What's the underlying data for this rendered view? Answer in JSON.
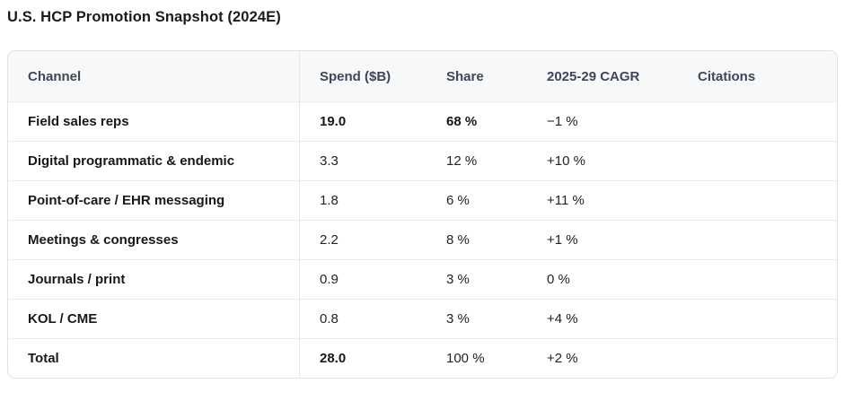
{
  "title": "U.S. HCP Promotion Snapshot (2024E)",
  "colors": {
    "header_background": "#f7f8fa",
    "header_text": "#3d4757",
    "body_text": "#202327",
    "emphasis_text": "#16181b",
    "outer_border": "#dde2e9",
    "row_border": "#e8ebef",
    "column_divider": "#e3e7ec",
    "page_background": "#ffffff"
  },
  "chart_data": {
    "type": "table",
    "title": "U.S. HCP Promotion Snapshot (2024E)",
    "columns": [
      {
        "key": "channel",
        "label": "Channel"
      },
      {
        "key": "spend",
        "label": "Spend ($B)"
      },
      {
        "key": "share",
        "label": "Share"
      },
      {
        "key": "cagr",
        "label": "2025-29 CAGR"
      },
      {
        "key": "citations",
        "label": "Citations"
      }
    ],
    "rows": [
      {
        "channel": "Field sales reps",
        "spend": "19.0",
        "share": "68 %",
        "cagr": "−1 %",
        "citations": "",
        "strong": [
          "spend",
          "share"
        ]
      },
      {
        "channel": "Digital programmatic & endemic",
        "spend": "3.3",
        "share": "12 %",
        "cagr": "+10 %",
        "citations": "",
        "strong": []
      },
      {
        "channel": "Point-of-care / EHR messaging",
        "spend": "1.8",
        "share": "6 %",
        "cagr": "+11 %",
        "citations": "",
        "strong": []
      },
      {
        "channel": "Meetings & congresses",
        "spend": "2.2",
        "share": "8 %",
        "cagr": "+1 %",
        "citations": "",
        "strong": []
      },
      {
        "channel": "Journals / print",
        "spend": "0.9",
        "share": "3 %",
        "cagr": "0 %",
        "citations": "",
        "strong": []
      },
      {
        "channel": "KOL / CME",
        "spend": "0.8",
        "share": "3 %",
        "cagr": "+4 %",
        "citations": "",
        "strong": []
      },
      {
        "channel": "Total",
        "spend": "28.0",
        "share": "100 %",
        "cagr": "+2 %",
        "citations": "",
        "strong": [
          "spend"
        ]
      }
    ]
  }
}
